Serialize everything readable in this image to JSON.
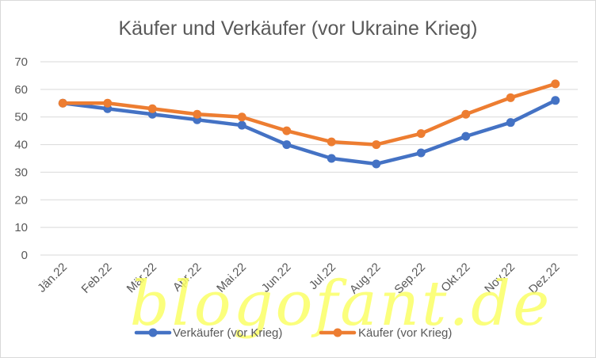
{
  "chart_data": {
    "type": "line",
    "title": "Käufer und Verkäufer (vor Ukraine Krieg)",
    "xlabel": "",
    "ylabel": "",
    "categories": [
      "Jän.22",
      "Feb.22",
      "Mär.22",
      "Apr.22",
      "Mai.22",
      "Jun.22",
      "Jul.22",
      "Aug.22",
      "Sep.22",
      "Okt.22",
      "Nov.22",
      "Dez.22"
    ],
    "ylim": [
      0,
      70
    ],
    "yticks": [
      "0",
      "10",
      "20",
      "30",
      "40",
      "50",
      "60",
      "70"
    ],
    "grid": "horizontal",
    "legend_position": "bottom",
    "series": [
      {
        "name": "Verkäufer (vor Krieg)",
        "color": "#4472c4",
        "values": [
          55,
          53,
          51,
          49,
          47,
          40,
          35,
          33,
          37,
          43,
          48,
          56
        ]
      },
      {
        "name": "Käufer (vor Krieg)",
        "color": "#ed7d31",
        "values": [
          55,
          55,
          53,
          51,
          50,
          45,
          41,
          40,
          44,
          51,
          57,
          62
        ]
      }
    ],
    "watermark": "blogofant.de"
  }
}
